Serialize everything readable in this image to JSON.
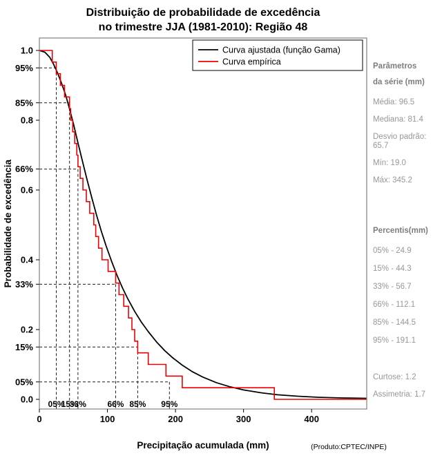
{
  "title": {
    "line1": "Distribuição de probabilidade de excedência",
    "line2": "no trimestre JJA (1981-2010): Região 48"
  },
  "legend": {
    "items": [
      {
        "label": "Curva ajustada (função Gama)",
        "color": "#000000"
      },
      {
        "label": "Curva empírica",
        "color": "#ee0000"
      }
    ]
  },
  "footer_note": "(Produto:CPTEC/INPE)",
  "side_panel": {
    "params_header_line1": "Parâmetros",
    "params_header_line2": "da série (mm)",
    "stats": [
      "Média: 96.5",
      "Mediana: 81.4",
      "Desvio padrão: 65.7",
      "Mín: 19.0",
      "Máx: 345.2"
    ],
    "percentis_header": "Percentis(mm)",
    "percentis": [
      "05% - 24.9",
      "15% - 44.3",
      "33% - 56.7",
      "66% - 112.1",
      "85% - 144.5",
      "95% - 191.1"
    ],
    "curtose": "Curtose: 1.2",
    "assimetria": "Assimetria: 1.7"
  },
  "chart_data": {
    "type": "line",
    "title": "Distribuição de probabilidade de excedência no trimestre JJA (1981-2010): Região 48",
    "xlabel": "Precipitação acumulada (mm)",
    "ylabel": "Probabilidade de excedência",
    "xlim": [
      0,
      481
    ],
    "ylim": [
      0,
      1
    ],
    "grid": false,
    "legend_position": "top-right-inside",
    "x_ticks": [
      0,
      100,
      200,
      300,
      400
    ],
    "y_ticks_numeric": [
      {
        "label": "1.0",
        "p": 1.0
      },
      {
        "label": "0.8",
        "p": 0.8
      },
      {
        "label": "0.6",
        "p": 0.6
      },
      {
        "label": "0.4",
        "p": 0.4
      },
      {
        "label": "0.2",
        "p": 0.2
      },
      {
        "label": "0.0",
        "p": 0.0
      }
    ],
    "y_ticks_percent": [
      {
        "label": "95%",
        "p": 0.95
      },
      {
        "label": "85%",
        "p": 0.85
      },
      {
        "label": "66%",
        "p": 0.66
      },
      {
        "label": "33%",
        "p": 0.33
      },
      {
        "label": "15%",
        "p": 0.15
      },
      {
        "label": "05%",
        "p": 0.05
      }
    ],
    "percentile_guides": [
      {
        "label": "05%",
        "value_mm": 24.9,
        "exceedance": 0.95
      },
      {
        "label": "15%",
        "value_mm": 44.3,
        "exceedance": 0.85
      },
      {
        "label": "33%",
        "value_mm": 56.7,
        "exceedance": 0.66
      },
      {
        "label": "66%",
        "value_mm": 112.1,
        "exceedance": 0.33
      },
      {
        "label": "85%",
        "value_mm": 144.5,
        "exceedance": 0.15
      },
      {
        "label": "95%",
        "value_mm": 191.1,
        "exceedance": 0.05
      }
    ],
    "series": [
      {
        "name": "Curva ajustada (função Gama)",
        "type": "smooth",
        "color": "#000000",
        "points": [
          [
            0,
            1.0
          ],
          [
            8,
            0.995
          ],
          [
            15,
            0.981
          ],
          [
            21,
            0.96
          ],
          [
            27,
            0.934
          ],
          [
            33,
            0.904
          ],
          [
            39,
            0.87
          ],
          [
            44.3,
            0.832
          ],
          [
            50,
            0.79
          ],
          [
            56.7,
            0.735
          ],
          [
            63,
            0.685
          ],
          [
            70,
            0.63
          ],
          [
            77,
            0.578
          ],
          [
            84,
            0.528
          ],
          [
            91,
            0.482
          ],
          [
            98,
            0.44
          ],
          [
            106,
            0.396
          ],
          [
            114,
            0.356
          ],
          [
            122,
            0.32
          ],
          [
            130,
            0.288
          ],
          [
            140,
            0.252
          ],
          [
            150,
            0.221
          ],
          [
            160,
            0.194
          ],
          [
            172,
            0.165
          ],
          [
            184,
            0.14
          ],
          [
            196,
            0.119
          ],
          [
            210,
            0.098
          ],
          [
            225,
            0.079
          ],
          [
            240,
            0.064
          ],
          [
            260,
            0.048
          ],
          [
            280,
            0.036
          ],
          [
            300,
            0.027
          ],
          [
            325,
            0.019
          ],
          [
            350,
            0.013
          ],
          [
            380,
            0.009
          ],
          [
            410,
            0.006
          ],
          [
            445,
            0.004
          ],
          [
            481,
            0.003
          ]
        ]
      },
      {
        "name": "Curva empírica",
        "type": "exceedance_step",
        "color": "#ee0000",
        "sorted_values": [
          19.0,
          24.9,
          31,
          37,
          44.3,
          46,
          49,
          52,
          55,
          56.7,
          60,
          64,
          69,
          74,
          80,
          82.8,
          87,
          92,
          101,
          112.1,
          117,
          124,
          131,
          136,
          140,
          144.5,
          160,
          186,
          210,
          345.2
        ]
      }
    ]
  }
}
